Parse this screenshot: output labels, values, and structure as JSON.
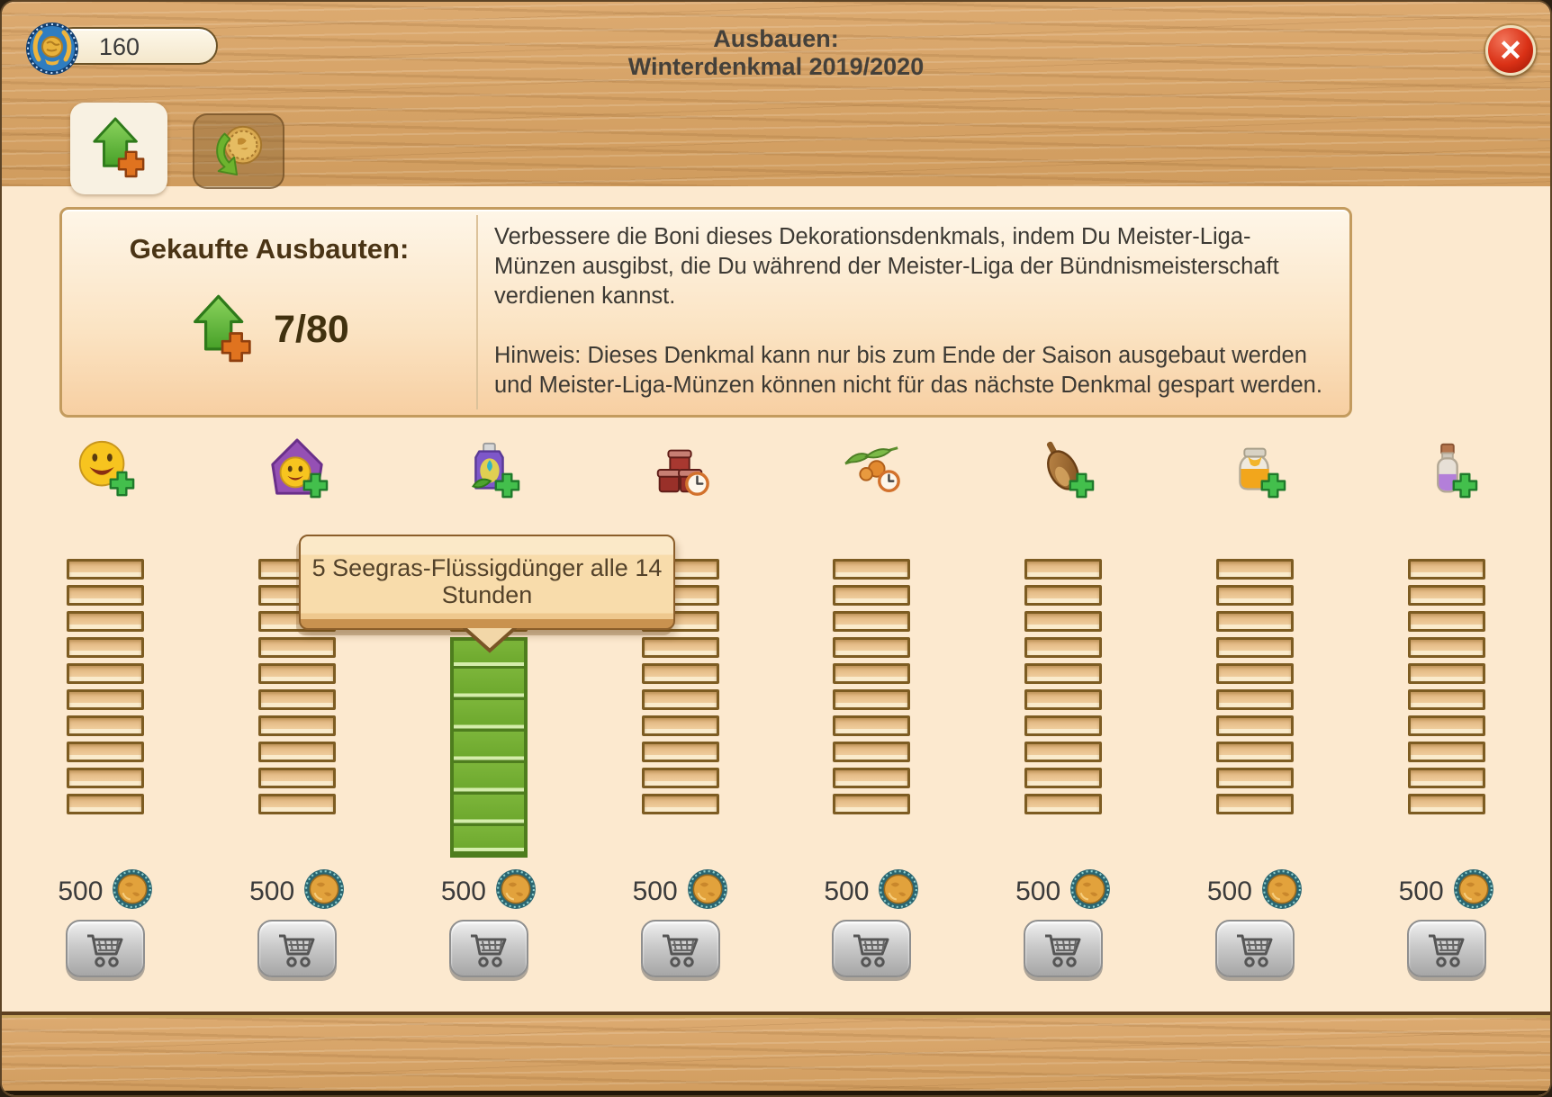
{
  "window": {
    "title_line1": "Ausbauen:",
    "title_line2": "Winterdenkmal 2019/2020"
  },
  "header": {
    "currency_amount": "160",
    "currency_icon": "master-league-coin",
    "close_label": "✕"
  },
  "tabs": [
    {
      "id": "ausbauten",
      "icon": "upgrade-arrow-plus",
      "active": true
    },
    {
      "id": "umtausch",
      "icon": "coin-exchange",
      "active": false
    }
  ],
  "summary": {
    "heading": "Gekaufte Ausbauten:",
    "icon": "upgrade-arrow-plus",
    "count": "7/80"
  },
  "description": {
    "paragraph1": "Verbessere die Boni dieses Dekorationsdenkmals, indem Du Meister-Liga-Münzen ausgibst, die Du während der Meister-Liga der Bündnismeisterschaft verdienen kannst.",
    "paragraph2": "Hinweis: Dieses Denkmal kann nur bis zum Ende der Saison ausgebaut werden und Meister-Liga-Münzen können nicht für das nächste Denkmal gespart werden."
  },
  "tooltip": {
    "text": "5 Seegras-Flüssigdünger alle 14 Stunden",
    "column": 3
  },
  "upgrades": {
    "total_segments": 10,
    "currency_icon": "master-league-coin",
    "buy_icon": "shopping-cart",
    "columns": [
      {
        "icon": "smiley-plus",
        "filled": 0,
        "price": "500"
      },
      {
        "icon": "house-smiley-plus",
        "filled": 0,
        "price": "500"
      },
      {
        "icon": "seaweed-fertilizer-plus",
        "filled": 7,
        "price": "500"
      },
      {
        "icon": "preserve-jars-clock",
        "filled": 0,
        "price": "500"
      },
      {
        "icon": "olive-branch-clock",
        "filled": 0,
        "price": "500"
      },
      {
        "icon": "honey-dipper-plus",
        "filled": 0,
        "price": "500"
      },
      {
        "icon": "honey-jar-plus",
        "filled": 0,
        "price": "500"
      },
      {
        "icon": "potion-vial-plus",
        "filled": 0,
        "price": "500"
      }
    ]
  },
  "colors": {
    "wood": "#d5a267",
    "content_cream": "#fce9cf",
    "filled_segment_green": "#72ad2f",
    "empty_segment_tan": "#ecc795",
    "tooltip_tan": "#f8dcab",
    "close_red": "#da3116"
  }
}
